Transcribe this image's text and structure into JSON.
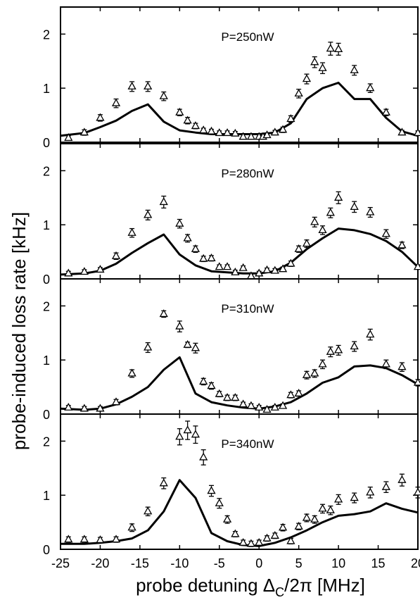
{
  "chart_data": {
    "type": "scatter",
    "ylabel": "probe-induced loss rate [kHz]",
    "xlabel_parts": [
      "probe detuning Δ",
      "C",
      "/2π [MHz]"
    ],
    "xlim": [
      -25,
      20
    ],
    "ylim": [
      0,
      2.5
    ],
    "x_ticks": [
      -25,
      -20,
      -15,
      -10,
      -5,
      0,
      5,
      10,
      15,
      20
    ],
    "x_tick_labels": [
      "-25",
      "-20",
      "-15",
      "-10",
      "-5",
      "0",
      "5",
      "10",
      "15",
      "20"
    ],
    "y_ticks": [
      0,
      1,
      2
    ],
    "y_tick_labels": [
      "0",
      "1",
      "2"
    ],
    "panels": [
      {
        "label": "P=250nW",
        "data": [
          {
            "x": -24,
            "y": 0.08,
            "err": 0.04
          },
          {
            "x": -22,
            "y": 0.18,
            "err": 0.05
          },
          {
            "x": -20,
            "y": 0.45,
            "err": 0.06
          },
          {
            "x": -18,
            "y": 0.72,
            "err": 0.08
          },
          {
            "x": -16,
            "y": 1.03,
            "err": 0.09
          },
          {
            "x": -14,
            "y": 1.03,
            "err": 0.09
          },
          {
            "x": -12,
            "y": 0.85,
            "err": 0.08
          },
          {
            "x": -10,
            "y": 0.55,
            "err": 0.06
          },
          {
            "x": -9,
            "y": 0.4,
            "err": 0.06
          },
          {
            "x": -8,
            "y": 0.3,
            "err": 0.05
          },
          {
            "x": -7,
            "y": 0.22,
            "err": 0.04
          },
          {
            "x": -6,
            "y": 0.2,
            "err": 0.04
          },
          {
            "x": -5,
            "y": 0.17,
            "err": 0.04
          },
          {
            "x": -4,
            "y": 0.17,
            "err": 0.04
          },
          {
            "x": -3,
            "y": 0.16,
            "err": 0.04
          },
          {
            "x": -2,
            "y": 0.1,
            "err": 0.04
          },
          {
            "x": -1,
            "y": 0.1,
            "err": 0.04
          },
          {
            "x": 0,
            "y": 0.1,
            "err": 0.04
          },
          {
            "x": 0.5,
            "y": 0.1,
            "err": 0.04
          },
          {
            "x": 1,
            "y": 0.13,
            "err": 0.04
          },
          {
            "x": 2,
            "y": 0.18,
            "err": 0.04
          },
          {
            "x": 3,
            "y": 0.23,
            "err": 0.05
          },
          {
            "x": 4,
            "y": 0.43,
            "err": 0.06
          },
          {
            "x": 5,
            "y": 0.9,
            "err": 0.08
          },
          {
            "x": 6,
            "y": 1.17,
            "err": 0.09
          },
          {
            "x": 7,
            "y": 1.48,
            "err": 0.1
          },
          {
            "x": 8,
            "y": 1.37,
            "err": 0.1
          },
          {
            "x": 9,
            "y": 1.73,
            "err": 0.12
          },
          {
            "x": 10,
            "y": 1.72,
            "err": 0.11
          },
          {
            "x": 12,
            "y": 1.33,
            "err": 0.09
          },
          {
            "x": 14,
            "y": 1.0,
            "err": 0.08
          },
          {
            "x": 16,
            "y": 0.55,
            "err": 0.06
          },
          {
            "x": 18,
            "y": 0.18,
            "err": 0.04
          },
          {
            "x": 20,
            "y": 0.17,
            "err": 0.04
          }
        ],
        "line": {
          "x": [
            -25,
            -22,
            -20,
            -18,
            -16,
            -14,
            -12,
            -10,
            -8,
            -6,
            -4,
            -2,
            0,
            2,
            4,
            6,
            8,
            10,
            12,
            14,
            16,
            18,
            20
          ],
          "y": [
            0.12,
            0.17,
            0.28,
            0.4,
            0.58,
            0.7,
            0.38,
            0.22,
            0.18,
            0.15,
            0.15,
            0.15,
            0.15,
            0.18,
            0.35,
            0.8,
            1.0,
            1.1,
            0.8,
            0.8,
            0.45,
            0.2,
            0.12
          ]
        }
      },
      {
        "label": "P=280nW",
        "data": [
          {
            "x": -24,
            "y": 0.1,
            "err": 0.04
          },
          {
            "x": -22,
            "y": 0.13,
            "err": 0.04
          },
          {
            "x": -20,
            "y": 0.17,
            "err": 0.04
          },
          {
            "x": -18,
            "y": 0.42,
            "err": 0.06
          },
          {
            "x": -16,
            "y": 0.85,
            "err": 0.08
          },
          {
            "x": -14,
            "y": 1.18,
            "err": 0.09
          },
          {
            "x": -12,
            "y": 1.42,
            "err": 0.11
          },
          {
            "x": -10,
            "y": 1.02,
            "err": 0.08
          },
          {
            "x": -9,
            "y": 0.75,
            "err": 0.07
          },
          {
            "x": -8,
            "y": 0.55,
            "err": 0.06
          },
          {
            "x": -7,
            "y": 0.37,
            "err": 0.05
          },
          {
            "x": -6,
            "y": 0.38,
            "err": 0.05
          },
          {
            "x": -5,
            "y": 0.22,
            "err": 0.04
          },
          {
            "x": -4,
            "y": 0.22,
            "err": 0.04
          },
          {
            "x": -3,
            "y": 0.12,
            "err": 0.04
          },
          {
            "x": -2,
            "y": 0.2,
            "err": 0.04
          },
          {
            "x": -1,
            "y": 0.05,
            "err": 0.04
          },
          {
            "x": 0,
            "y": 0.1,
            "err": 0.04
          },
          {
            "x": 1,
            "y": 0.16,
            "err": 0.04
          },
          {
            "x": 2,
            "y": 0.15,
            "err": 0.04
          },
          {
            "x": 3,
            "y": 0.18,
            "err": 0.04
          },
          {
            "x": 4,
            "y": 0.28,
            "err": 0.05
          },
          {
            "x": 5,
            "y": 0.55,
            "err": 0.06
          },
          {
            "x": 6,
            "y": 0.65,
            "err": 0.07
          },
          {
            "x": 7,
            "y": 1.05,
            "err": 0.09
          },
          {
            "x": 8,
            "y": 0.9,
            "err": 0.08
          },
          {
            "x": 9,
            "y": 1.22,
            "err": 0.09
          },
          {
            "x": 10,
            "y": 1.5,
            "err": 0.11
          },
          {
            "x": 12,
            "y": 1.33,
            "err": 0.1
          },
          {
            "x": 14,
            "y": 1.23,
            "err": 0.09
          },
          {
            "x": 16,
            "y": 0.83,
            "err": 0.08
          },
          {
            "x": 18,
            "y": 0.62,
            "err": 0.06
          },
          {
            "x": 20,
            "y": 0.22,
            "err": 0.04
          }
        ],
        "line": {
          "x": [
            -25,
            -22,
            -20,
            -18,
            -16,
            -14,
            -12,
            -10,
            -8,
            -6,
            -4,
            -2,
            0,
            2,
            4,
            6,
            8,
            10,
            12,
            14,
            16,
            18,
            20
          ],
          "y": [
            0.08,
            0.1,
            0.15,
            0.28,
            0.48,
            0.66,
            0.82,
            0.45,
            0.25,
            0.14,
            0.12,
            0.1,
            0.1,
            0.14,
            0.3,
            0.55,
            0.75,
            0.93,
            0.9,
            0.83,
            0.7,
            0.5,
            0.22
          ]
        }
      },
      {
        "label": "P=310nW",
        "data": [
          {
            "x": -24,
            "y": 0.12,
            "err": 0.04
          },
          {
            "x": -22,
            "y": 0.1,
            "err": 0.04
          },
          {
            "x": -20,
            "y": 0.1,
            "err": 0.04
          },
          {
            "x": -18,
            "y": 0.22,
            "err": 0.05
          },
          {
            "x": -16,
            "y": 0.75,
            "err": 0.07
          },
          {
            "x": -14,
            "y": 1.23,
            "err": 0.09
          },
          {
            "x": -12,
            "y": 1.85,
            "err": 0.06
          },
          {
            "x": -10,
            "y": 1.62,
            "err": 0.1
          },
          {
            "x": -9,
            "y": 1.28,
            "err": 0.05
          },
          {
            "x": -8,
            "y": 1.22,
            "err": 0.09
          },
          {
            "x": -7,
            "y": 0.6,
            "err": 0.06
          },
          {
            "x": -6,
            "y": 0.52,
            "err": 0.06
          },
          {
            "x": -5,
            "y": 0.37,
            "err": 0.05
          },
          {
            "x": -4,
            "y": 0.3,
            "err": 0.05
          },
          {
            "x": -3,
            "y": 0.3,
            "err": 0.05
          },
          {
            "x": -2,
            "y": 0.18,
            "err": 0.04
          },
          {
            "x": -1,
            "y": 0.15,
            "err": 0.04
          },
          {
            "x": 0,
            "y": 0.12,
            "err": 0.04
          },
          {
            "x": 1,
            "y": 0.08,
            "err": 0.04
          },
          {
            "x": 2,
            "y": 0.12,
            "err": 0.04
          },
          {
            "x": 3,
            "y": 0.15,
            "err": 0.04
          },
          {
            "x": 4,
            "y": 0.35,
            "err": 0.05
          },
          {
            "x": 5,
            "y": 0.38,
            "err": 0.05
          },
          {
            "x": 6,
            "y": 0.72,
            "err": 0.07
          },
          {
            "x": 7,
            "y": 0.75,
            "err": 0.07
          },
          {
            "x": 8,
            "y": 0.92,
            "err": 0.08
          },
          {
            "x": 9,
            "y": 1.15,
            "err": 0.09
          },
          {
            "x": 10,
            "y": 1.18,
            "err": 0.09
          },
          {
            "x": 12,
            "y": 1.25,
            "err": 0.09
          },
          {
            "x": 14,
            "y": 1.47,
            "err": 0.1
          },
          {
            "x": 16,
            "y": 0.92,
            "err": 0.08
          },
          {
            "x": 18,
            "y": 0.87,
            "err": 0.08
          },
          {
            "x": 20,
            "y": 0.58,
            "err": 0.06
          }
        ],
        "line": {
          "x": [
            -25,
            -22,
            -20,
            -18,
            -16,
            -14,
            -12,
            -10,
            -8,
            -6,
            -4,
            -2,
            0,
            2,
            4,
            6,
            8,
            10,
            12,
            14,
            16,
            18,
            20
          ],
          "y": [
            0.1,
            0.08,
            0.1,
            0.18,
            0.32,
            0.5,
            0.82,
            1.05,
            0.38,
            0.22,
            0.16,
            0.12,
            0.1,
            0.14,
            0.22,
            0.38,
            0.58,
            0.68,
            0.88,
            0.9,
            0.85,
            0.72,
            0.55
          ]
        }
      },
      {
        "label": "P=340nW",
        "data": [
          {
            "x": -24,
            "y": 0.18,
            "err": 0.05
          },
          {
            "x": -22,
            "y": 0.18,
            "err": 0.05
          },
          {
            "x": -20,
            "y": 0.17,
            "err": 0.05
          },
          {
            "x": -18,
            "y": 0.18,
            "err": 0.05
          },
          {
            "x": -16,
            "y": 0.4,
            "err": 0.07
          },
          {
            "x": -14,
            "y": 0.7,
            "err": 0.08
          },
          {
            "x": -12,
            "y": 1.22,
            "err": 0.1
          },
          {
            "x": -10,
            "y": 2.08,
            "err": 0.15
          },
          {
            "x": -9,
            "y": 2.2,
            "err": 0.17
          },
          {
            "x": -8,
            "y": 2.12,
            "err": 0.16
          },
          {
            "x": -7,
            "y": 1.7,
            "err": 0.14
          },
          {
            "x": -6,
            "y": 1.08,
            "err": 0.1
          },
          {
            "x": -5,
            "y": 0.85,
            "err": 0.09
          },
          {
            "x": -4,
            "y": 0.55,
            "err": 0.07
          },
          {
            "x": -3,
            "y": 0.28,
            "err": 0.05
          },
          {
            "x": -2,
            "y": 0.12,
            "err": 0.05
          },
          {
            "x": -1,
            "y": 0.1,
            "err": 0.05
          },
          {
            "x": 0,
            "y": 0.12,
            "err": 0.05
          },
          {
            "x": 1,
            "y": 0.2,
            "err": 0.05
          },
          {
            "x": 2,
            "y": 0.25,
            "err": 0.05
          },
          {
            "x": 3,
            "y": 0.4,
            "err": 0.06
          },
          {
            "x": 4,
            "y": 0.15,
            "err": 0.05
          },
          {
            "x": 5,
            "y": 0.42,
            "err": 0.06
          },
          {
            "x": 6,
            "y": 0.58,
            "err": 0.07
          },
          {
            "x": 7,
            "y": 0.55,
            "err": 0.07
          },
          {
            "x": 8,
            "y": 0.75,
            "err": 0.08
          },
          {
            "x": 9,
            "y": 0.72,
            "err": 0.08
          },
          {
            "x": 10,
            "y": 0.92,
            "err": 0.09
          },
          {
            "x": 12,
            "y": 0.95,
            "err": 0.09
          },
          {
            "x": 14,
            "y": 1.05,
            "err": 0.1
          },
          {
            "x": 16,
            "y": 1.15,
            "err": 0.1
          },
          {
            "x": 18,
            "y": 1.28,
            "err": 0.11
          },
          {
            "x": 20,
            "y": 1.05,
            "err": 0.1
          }
        ],
        "line": {
          "x": [
            -25,
            -22,
            -20,
            -18,
            -16,
            -14,
            -12,
            -10,
            -8,
            -6,
            -4,
            -2,
            0,
            2,
            4,
            6,
            8,
            10,
            12,
            14,
            16,
            18,
            20
          ],
          "y": [
            0.1,
            0.1,
            0.12,
            0.15,
            0.2,
            0.35,
            0.7,
            1.28,
            0.95,
            0.3,
            0.15,
            0.08,
            0.06,
            0.12,
            0.22,
            0.35,
            0.5,
            0.62,
            0.65,
            0.7,
            0.85,
            0.75,
            0.68
          ]
        }
      }
    ]
  }
}
